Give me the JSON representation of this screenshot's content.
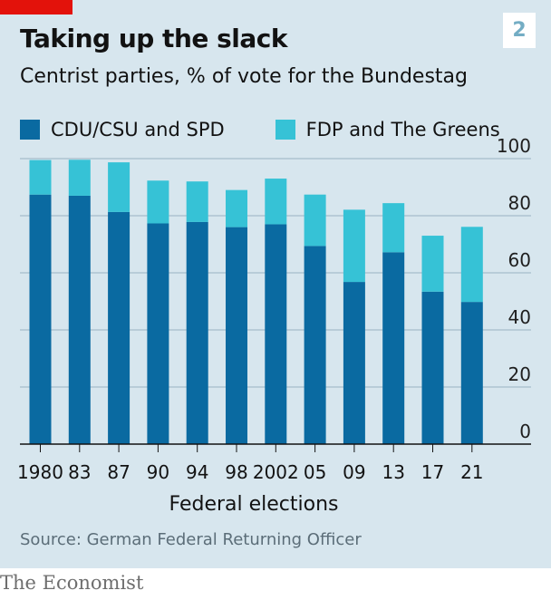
{
  "header": {
    "title": "Taking up the slack",
    "subtitle": "Centrist parties, % of vote for the Bundestag",
    "badge": "2"
  },
  "footer": {
    "source": "Source: German Federal Returning Officer",
    "brand": "The Economist"
  },
  "colors": {
    "panel": "#d7e6ee",
    "major": "#0a6aa1",
    "minor": "#36c2d6",
    "accent": "#e3120b",
    "grid": "#9ab3c2"
  },
  "chart_data": {
    "type": "bar",
    "stacked": true,
    "title": "Taking up the slack",
    "subtitle": "Centrist parties, % of vote for the Bundestag",
    "xlabel": "Federal elections",
    "ylabel": "",
    "ylim": [
      0,
      100
    ],
    "yticks": [
      0,
      20,
      40,
      60,
      80,
      100
    ],
    "grid": true,
    "legend": "top-left",
    "categories": [
      "1980",
      "83",
      "87",
      "90",
      "94",
      "98",
      "2002",
      "05",
      "09",
      "13",
      "17",
      "21"
    ],
    "series": [
      {
        "name": "CDU/CSU and SPD",
        "values": [
          87.4,
          87.0,
          81.3,
          77.3,
          77.8,
          76.0,
          77.0,
          69.4,
          56.8,
          67.2,
          53.4,
          49.8
        ]
      },
      {
        "name": "FDP and The Greens",
        "values": [
          12.1,
          12.6,
          17.4,
          15.0,
          14.2,
          13.0,
          16.0,
          18.0,
          25.3,
          17.2,
          19.6,
          26.3
        ]
      }
    ]
  }
}
